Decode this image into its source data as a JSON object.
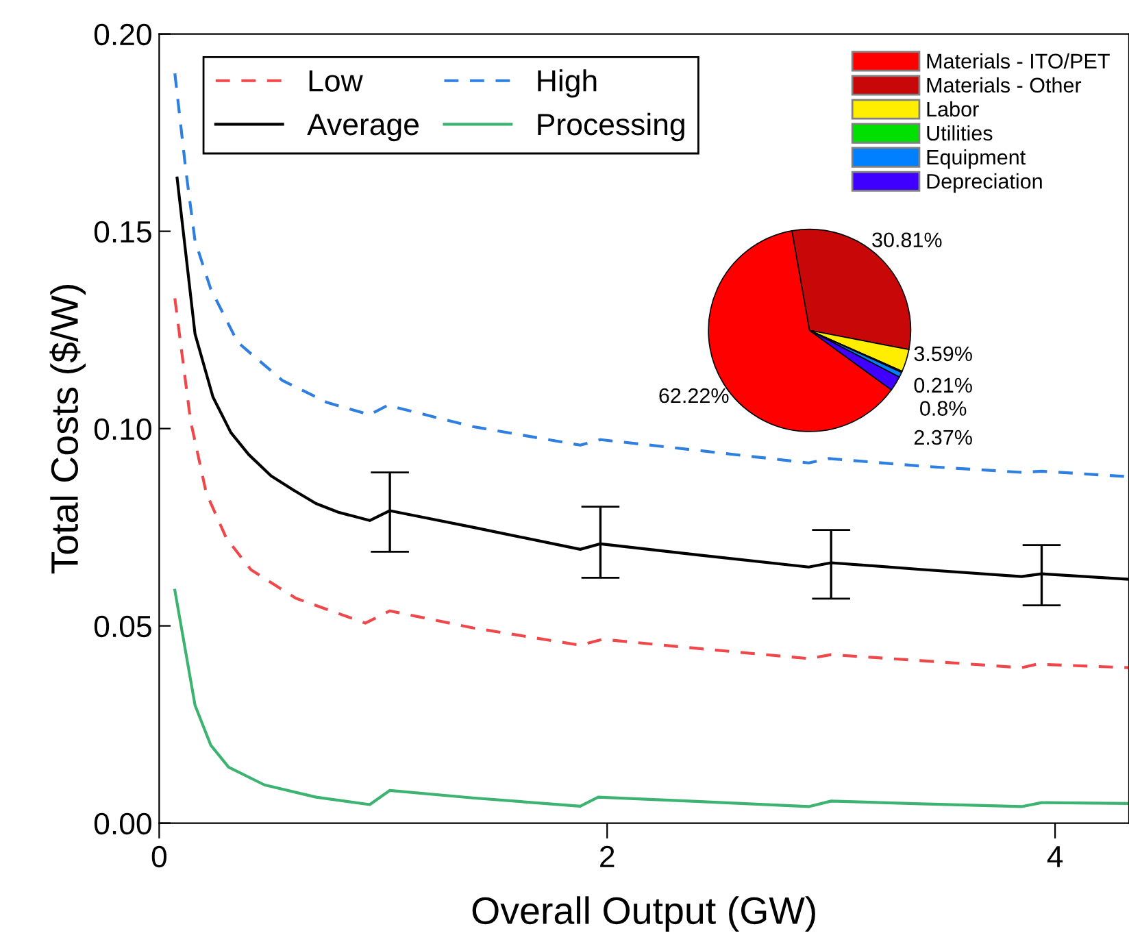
{
  "chart_data": [
    {
      "type": "line",
      "xlabel": "Overall Output (GW)",
      "ylabel": "Total Costs ($/W)",
      "xlim": [
        0,
        4.33
      ],
      "ylim": [
        0,
        0.2
      ],
      "xticks": [
        0,
        2,
        4
      ],
      "yticks": [
        {
          "value": 0,
          "label": "0.00"
        },
        {
          "value": 0.05,
          "label": "0.05"
        },
        {
          "value": 0.1,
          "label": "0.10"
        },
        {
          "value": 0.15,
          "label": "0.15"
        },
        {
          "value": 0.2,
          "label": "0.20"
        }
      ],
      "grid": false,
      "legend": "top left",
      "marker": "none",
      "series": [
        {
          "name": "Low",
          "color": "#f0474a",
          "line_style": "dashed",
          "x": [
            0.07,
            0.14,
            0.21,
            0.3,
            0.41,
            0.61,
            0.92,
            1.03,
            1.4,
            1.88,
            1.98,
            2.4,
            2.9,
            3.0,
            3.4,
            3.85,
            3.92,
            4.33
          ],
          "values": [
            0.133,
            0.102,
            0.0837,
            0.0722,
            0.0642,
            0.057,
            0.0507,
            0.0538,
            0.0495,
            0.0451,
            0.0466,
            0.0443,
            0.0417,
            0.0427,
            0.0412,
            0.0394,
            0.0403,
            0.0394
          ]
        },
        {
          "name": "Average",
          "color": "#000000",
          "line_style": "solid",
          "x": [
            0.08,
            0.16,
            0.24,
            0.32,
            0.4,
            0.5,
            0.6,
            0.7,
            0.8,
            0.94,
            1.03,
            1.4,
            1.88,
            1.97,
            2.4,
            2.9,
            3.0,
            3.4,
            3.85,
            3.94,
            4.33
          ],
          "values": [
            0.1635,
            0.124,
            0.108,
            0.099,
            0.0934,
            0.088,
            0.0844,
            0.081,
            0.0788,
            0.0767,
            0.0792,
            0.075,
            0.0694,
            0.0708,
            0.068,
            0.0649,
            0.066,
            0.0643,
            0.0625,
            0.0632,
            0.0618
          ],
          "errors": [
            null,
            null,
            null,
            null,
            null,
            null,
            null,
            null,
            null,
            null,
            [
              0.0688,
              0.0889
            ],
            null,
            null,
            [
              0.0622,
              0.0802
            ],
            null,
            null,
            [
              0.0569,
              0.0743
            ],
            null,
            null,
            [
              0.0552,
              0.0705
            ],
            null
          ]
        },
        {
          "name": "High",
          "color": "#2f7fe0",
          "line_style": "dashed",
          "x": [
            0.07,
            0.12,
            0.16,
            0.23,
            0.35,
            0.55,
            0.75,
            0.94,
            1.02,
            1.4,
            1.88,
            1.97,
            2.4,
            2.9,
            2.99,
            3.4,
            3.85,
            3.94,
            4.33
          ],
          "values": [
            0.19,
            0.165,
            0.1476,
            0.1354,
            0.1219,
            0.1122,
            0.1066,
            0.1035,
            0.1059,
            0.1005,
            0.0958,
            0.0972,
            0.0945,
            0.0913,
            0.0924,
            0.0905,
            0.0889,
            0.0892,
            0.0878
          ]
        },
        {
          "name": "Processing",
          "color": "#3cb371",
          "line_style": "solid",
          "x": [
            0.07,
            0.16,
            0.23,
            0.31,
            0.47,
            0.7,
            0.94,
            1.03,
            1.4,
            1.88,
            1.96,
            2.4,
            2.9,
            3.0,
            3.4,
            3.85,
            3.94,
            4.33
          ],
          "values": [
            0.059,
            0.0299,
            0.0198,
            0.0142,
            0.0097,
            0.0066,
            0.0047,
            0.0083,
            0.0064,
            0.0043,
            0.0066,
            0.0055,
            0.0042,
            0.0056,
            0.0049,
            0.0042,
            0.0052,
            0.005
          ]
        }
      ]
    },
    {
      "type": "pie",
      "categories": [
        "Materials - ITO/PET",
        "Materials - Other",
        "Labor",
        "Utilities",
        "Equipment",
        "Depreciation"
      ],
      "values": [
        62.22,
        30.81,
        3.59,
        0.21,
        0.8,
        2.37
      ],
      "colors": [
        "#ff0000",
        "#c80808",
        "#ffee00",
        "#00e000",
        "#0080ff",
        "#4000ff"
      ],
      "value_labels": [
        "62.22%",
        "30.81%",
        "3.59%",
        "0.21%",
        "0.8%",
        "2.37%"
      ],
      "legend": "top right"
    }
  ]
}
